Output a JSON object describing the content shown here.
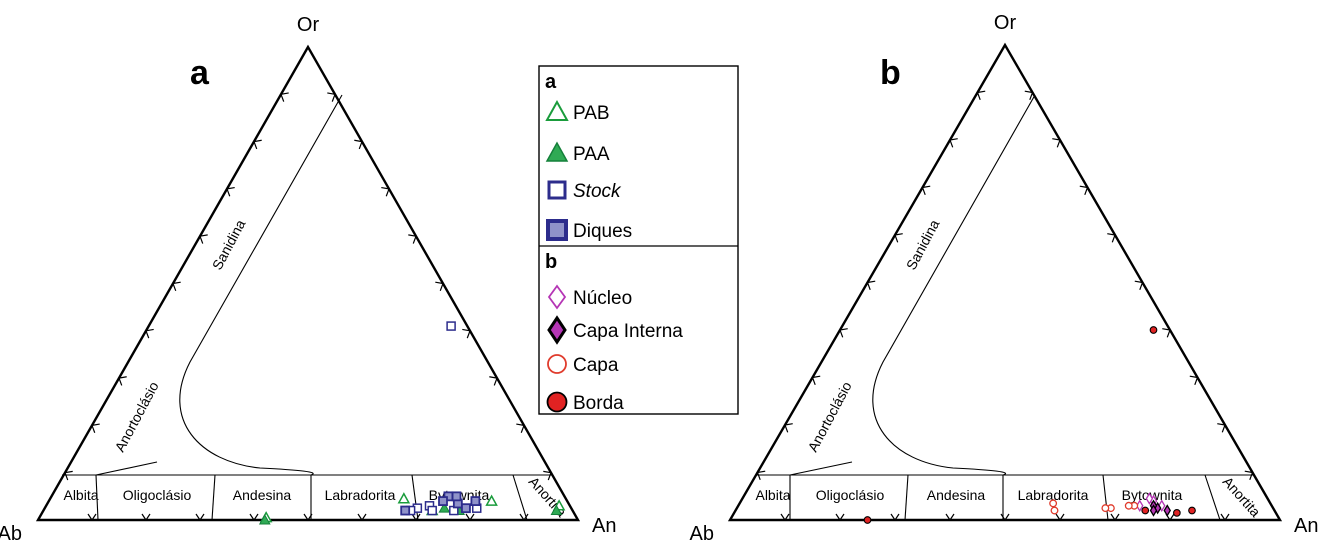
{
  "chart_data": [
    {
      "type": "scatter",
      "panel_label": "a",
      "projection": "ternary",
      "vertex_labels": {
        "top": "Or",
        "left": "Ab",
        "right": "An"
      },
      "field_labels": [
        "Albita",
        "Oligoclásio",
        "Andesina",
        "Labradorita",
        "Bytownita",
        "Anortita",
        "Sanidina",
        "Anortoclásio"
      ],
      "series": [
        {
          "name": "PAB",
          "color": "#1a9c3c",
          "points": [
            [
              0.95,
              0.03
            ],
            [
              0.82,
              0.04
            ],
            [
              0.76,
              0.035
            ],
            [
              0.72,
              0.02
            ],
            [
              0.655,
              0.045
            ],
            [
              0.42,
              0.005
            ]
          ]
        },
        {
          "name": "PAA",
          "color": "#1a9c3c",
          "points": [
            [
              0.95,
              0.02
            ],
            [
              0.77,
              0.02
            ],
            [
              0.74,
              0.025
            ],
            [
              0.42,
              0.0
            ]
          ]
        },
        {
          "name": "Stock",
          "color": "#2c2c8c",
          "points": [
            [
              0.56,
              0.41
            ],
            [
              0.8,
              0.025
            ],
            [
              0.76,
              0.02
            ],
            [
              0.71,
              0.03
            ],
            [
              0.72,
              0.02
            ],
            [
              0.69,
              0.025
            ],
            [
              0.68,
              0.02
            ]
          ]
        },
        {
          "name": "Diques",
          "color": "#2c2c8c",
          "points": [
            [
              0.79,
              0.04
            ],
            [
              0.76,
              0.035
            ],
            [
              0.75,
              0.05
            ],
            [
              0.735,
              0.05
            ],
            [
              0.73,
              0.04
            ],
            [
              0.67,
              0.02
            ],
            [
              0.78,
              0.025
            ]
          ]
        }
      ]
    },
    {
      "type": "scatter",
      "panel_label": "b",
      "projection": "ternary",
      "vertex_labels": {
        "top": "Or",
        "left": "Ab",
        "right": "An"
      },
      "field_labels": [
        "Albita",
        "Oligoclásio",
        "Andesina",
        "Labradorita",
        "Bytownita",
        "Anortita",
        "Sanidina",
        "Anortoclásio"
      ],
      "series": [
        {
          "name": "Núcleo",
          "color": "#b535b5",
          "points": [
            [
              0.77,
              0.03
            ],
            [
              0.75,
              0.04
            ],
            [
              0.74,
              0.045
            ],
            [
              0.73,
              0.03
            ]
          ]
        },
        {
          "name": "Capa Interna",
          "color": "#000000",
          "points": [
            [
              0.785,
              0.02
            ],
            [
              0.765,
              0.025
            ],
            [
              0.755,
              0.03
            ],
            [
              0.76,
              0.02
            ]
          ]
        },
        {
          "name": "Capa",
          "color": "#e03b2c",
          "points": [
            [
              0.72,
              0.03
            ],
            [
              0.71,
              0.03
            ],
            [
              0.68,
              0.025
            ],
            [
              0.67,
              0.025
            ],
            [
              0.58,
              0.02
            ],
            [
              0.57,
              0.035
            ]
          ]
        },
        {
          "name": "Borda",
          "color": "#e02222",
          "points": [
            [
              0.57,
              0.4
            ],
            [
              0.83,
              0.02
            ],
            [
              0.805,
              0.015
            ],
            [
              0.745,
              0.02
            ],
            [
              0.25,
              0.0
            ]
          ]
        }
      ]
    }
  ],
  "legend": {
    "group_a_label": "a",
    "group_b_label": "b",
    "items_a": [
      {
        "label": "PAB",
        "italic": false
      },
      {
        "label": "PAA",
        "italic": false
      },
      {
        "label": "Stock",
        "italic": true
      },
      {
        "label": "Diques",
        "italic": false
      }
    ],
    "items_b": [
      {
        "label": "Núcleo",
        "italic": false
      },
      {
        "label": "Capa Interna",
        "italic": false
      },
      {
        "label": "Capa",
        "italic": false
      },
      {
        "label": "Borda",
        "italic": false
      }
    ]
  },
  "colors": {
    "green": "#1a9c3c",
    "green_fill": "#2faa54",
    "navy": "#2c2c8c",
    "navy_fill": "#8f92c9",
    "magenta": "#b535b5",
    "red": "#e03b2c",
    "red_fill": "#e02222"
  }
}
